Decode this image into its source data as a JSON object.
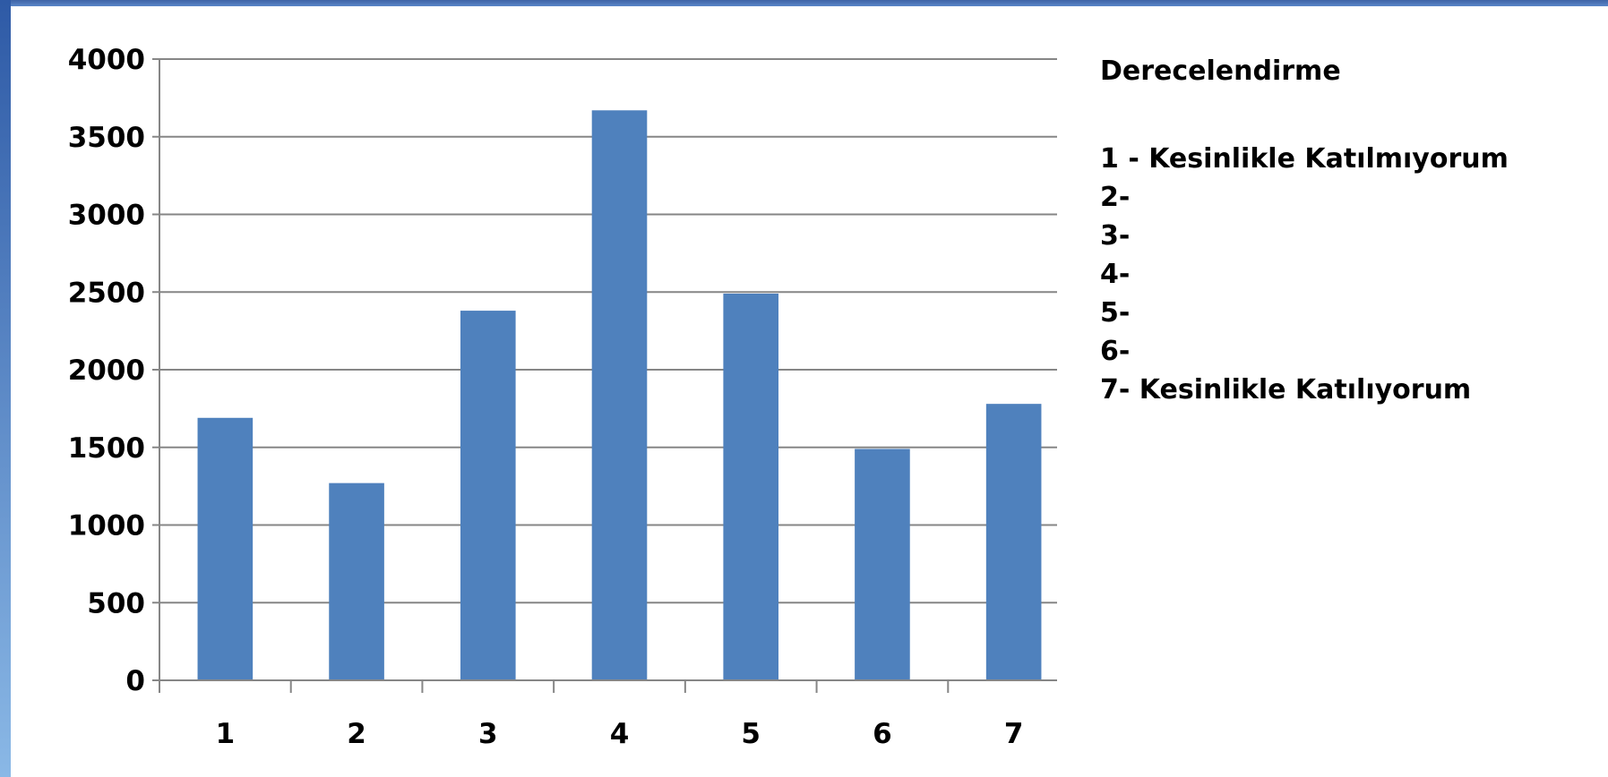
{
  "colors": {
    "bar": "#4f81bd",
    "grid": "#868686",
    "axis": "#868686",
    "frame": "#3e63a6"
  },
  "chart_data": {
    "type": "bar",
    "categories": [
      "1",
      "2",
      "3",
      "4",
      "5",
      "6",
      "7"
    ],
    "values": [
      1690,
      1270,
      2380,
      3670,
      2490,
      1490,
      1780
    ],
    "ylim": [
      0,
      4000
    ],
    "yticks": [
      "0",
      "500",
      "1000",
      "1500",
      "2000",
      "2500",
      "3000",
      "3500",
      "4000"
    ],
    "grid": true,
    "legend_position": "right"
  },
  "legend": {
    "title": "Derecelendirme",
    "items": [
      "1 - Kesinlikle Katılmıyorum",
      "2-",
      "3-",
      "4-",
      "5-",
      "6-",
      "7- Kesinlikle Katılıyorum"
    ]
  }
}
